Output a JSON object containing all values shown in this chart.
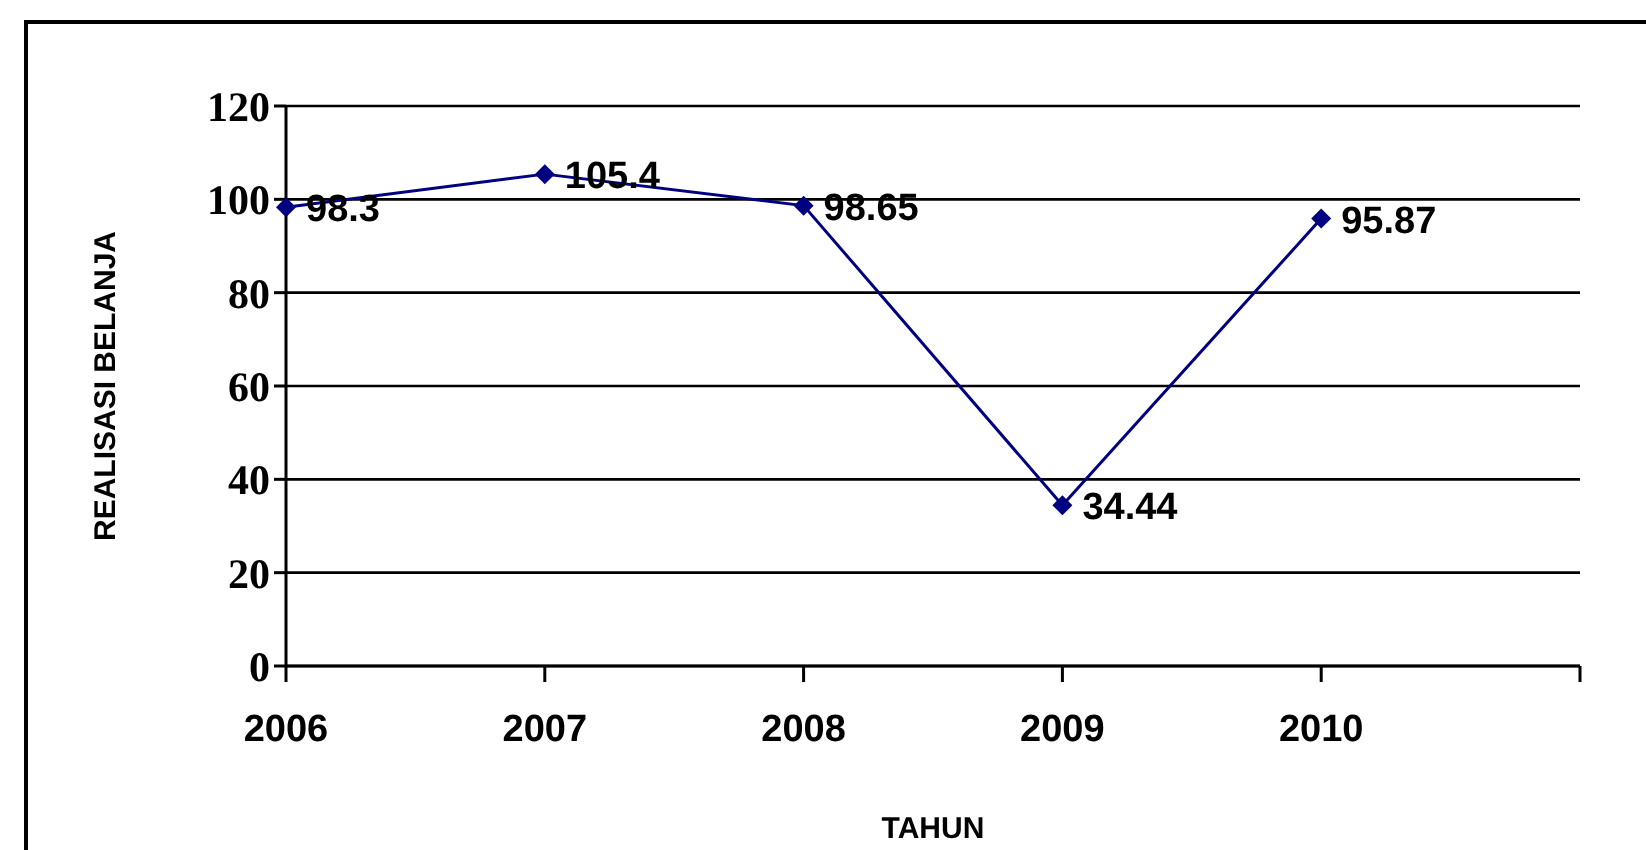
{
  "chart_data": {
    "type": "line",
    "xlabel": "TAHUN",
    "ylabel": "REALISASI BELANJA",
    "categories": [
      "2006",
      "2007",
      "2008",
      "2009",
      "2010",
      null
    ],
    "series": [
      {
        "color": "#000080",
        "values": [
          98.3,
          105.4,
          98.65,
          34.44,
          95.87,
          null
        ]
      }
    ],
    "ylim": [
      0,
      120
    ],
    "yticks": [
      0,
      20,
      40,
      60,
      80,
      100,
      120
    ],
    "grid": "y",
    "legend": false,
    "marker": "diamond",
    "line_style": "solid",
    "data_labels": true
  }
}
